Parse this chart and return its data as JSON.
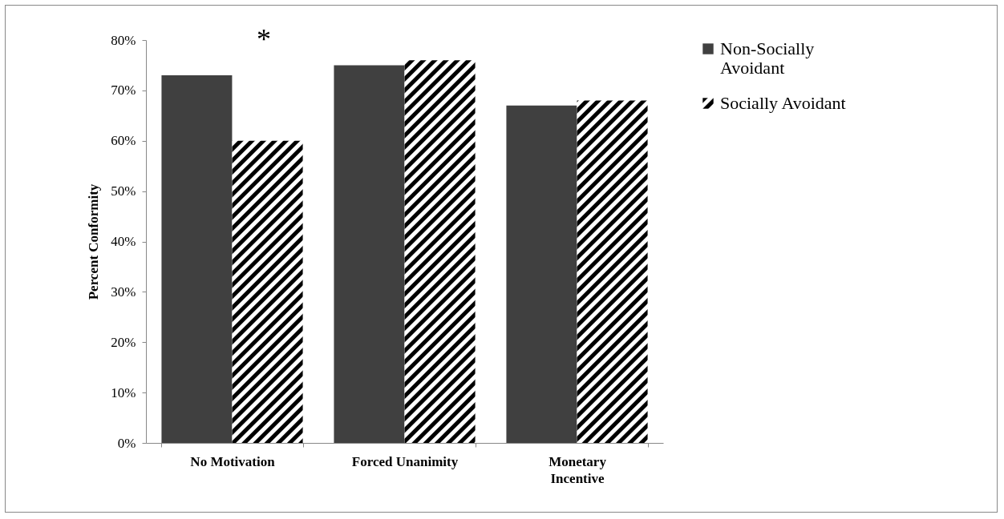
{
  "chart_data": {
    "type": "bar",
    "ylabel": "Percent Conformity",
    "categories": [
      "No Motivation",
      "Forced Unanimity",
      "Monetary Incentive"
    ],
    "series": [
      {
        "name": "Non-Socially Avoidant",
        "color": "#404040",
        "values": [
          73,
          75,
          67
        ]
      },
      {
        "name": "Socially Avoidant",
        "color": "#000000",
        "values": [
          60,
          76,
          68
        ]
      }
    ],
    "ylim": [
      0,
      80
    ],
    "yticks": [
      {
        "value": 0,
        "label": "0%"
      },
      {
        "value": 10,
        "label": "10%"
      },
      {
        "value": 20,
        "label": "20%"
      },
      {
        "value": 30,
        "label": "30%"
      },
      {
        "value": 40,
        "label": "40%"
      },
      {
        "value": 50,
        "label": "50%"
      },
      {
        "value": 60,
        "label": "60%"
      },
      {
        "value": 70,
        "label": "70%"
      },
      {
        "value": 80,
        "label": "80%"
      }
    ],
    "grid": false,
    "legend": "right",
    "annotations": [
      "*"
    ]
  }
}
